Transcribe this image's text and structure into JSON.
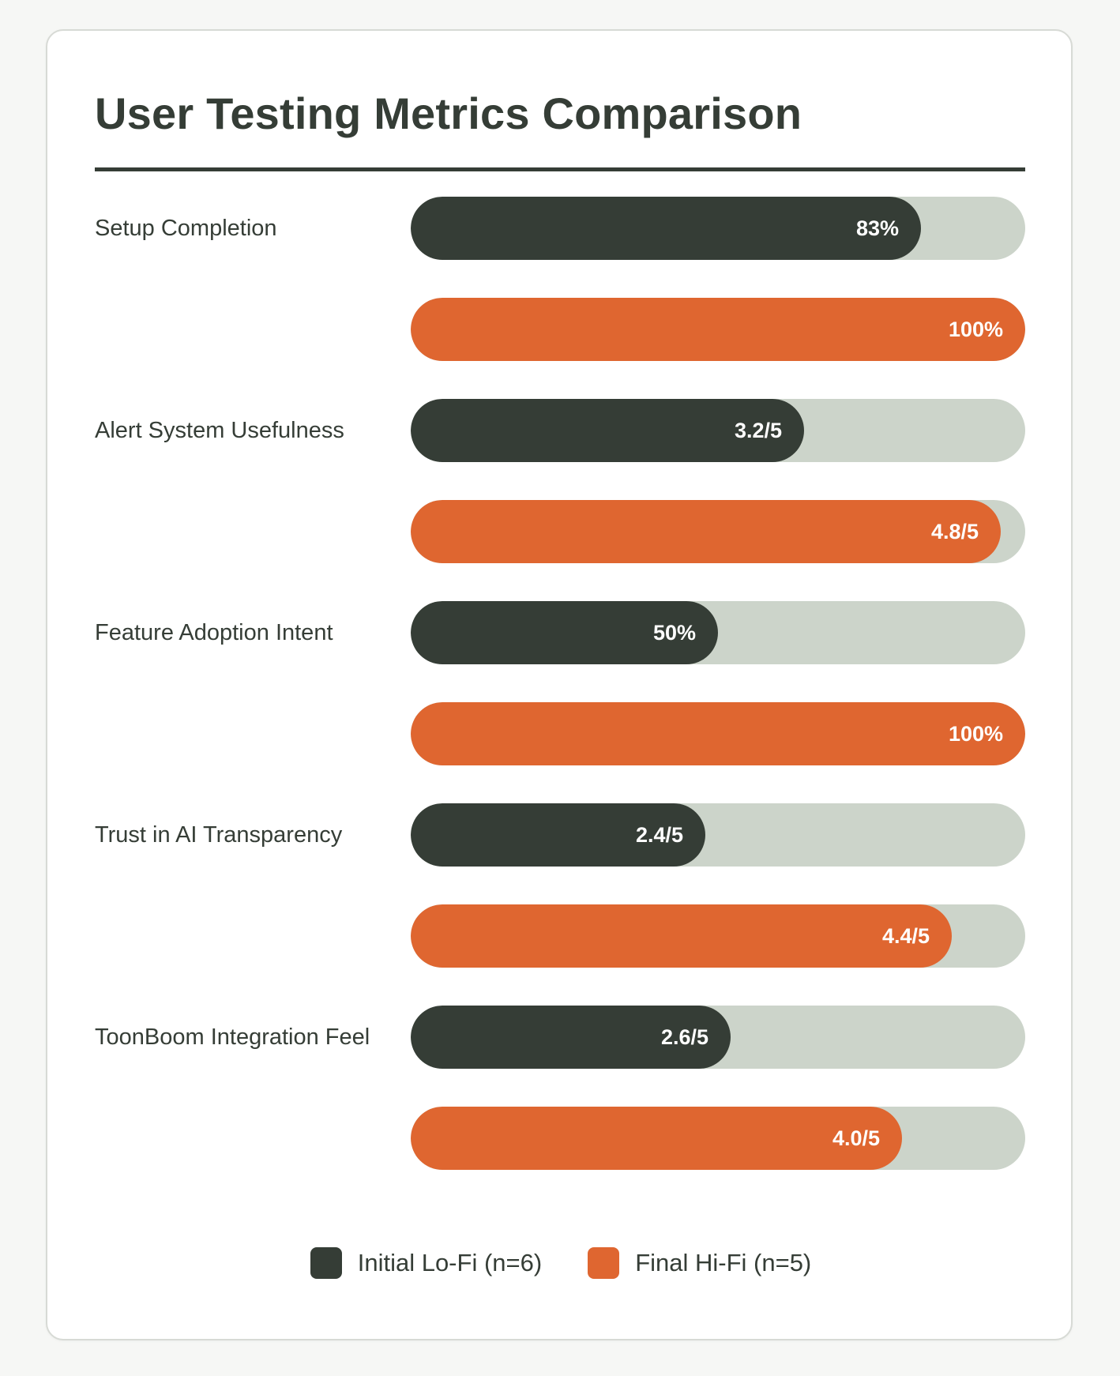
{
  "chart_data": {
    "type": "bar",
    "orientation": "horizontal",
    "title": "User Testing Metrics Comparison",
    "categories": [
      "Setup Completion",
      "Alert System Usefulness",
      "Feature Adoption Intent",
      "Trust in AI Transparency",
      "ToonBoom Integration Feel"
    ],
    "series": [
      {
        "name": "Initial Lo-Fi (n=6)",
        "color": "#353d36",
        "values": [
          83,
          64,
          50,
          48,
          52
        ],
        "labels": [
          "83%",
          "3.2/5",
          "50%",
          "2.4/5",
          "2.6/5"
        ]
      },
      {
        "name": "Final Hi-Fi (n=5)",
        "color": "#df6630",
        "values": [
          100,
          96,
          100,
          88,
          80
        ],
        "labels": [
          "100%",
          "4.8/5",
          "100%",
          "4.4/5",
          "4.0/5"
        ]
      }
    ],
    "value_scale": "percent of maximum",
    "xlim": [
      0,
      100
    ],
    "track_color": "#ccd4ca",
    "legend_position": "bottom-center"
  }
}
